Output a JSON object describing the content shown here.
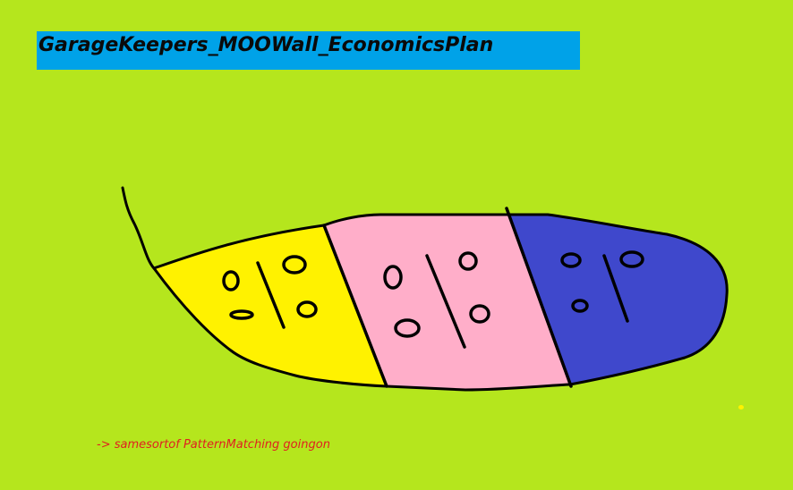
{
  "canvas": {
    "background_color": "#b5e61d"
  },
  "title": {
    "text": "GarageKeepers_MOOWall_EconomicsPlan",
    "bar_color": "#00a2e8"
  },
  "note": {
    "text": "-> samesortof PatternMatching goingon",
    "color": "#e02020"
  },
  "diagram": {
    "outline_color": "#000000",
    "segments": [
      {
        "name": "yellow-segment",
        "color": "#fff200"
      },
      {
        "name": "pink-segment",
        "color": "#ffaec9"
      },
      {
        "name": "blue-segment",
        "color": "#3f48cc"
      }
    ]
  },
  "stray_dot_color": "#fff200"
}
